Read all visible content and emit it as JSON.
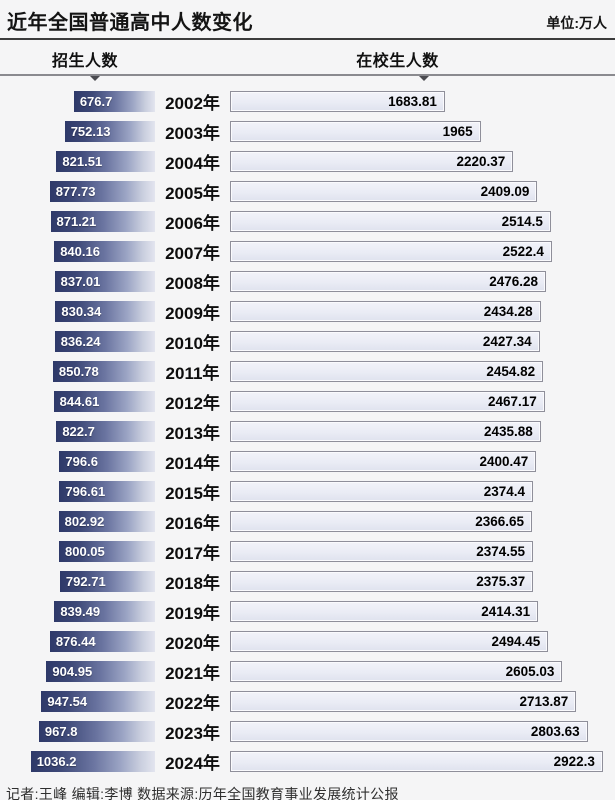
{
  "title": "近年全国普通高中人数变化",
  "unit_label": "单位:万人",
  "column_headers": {
    "enrollment": "招生人数",
    "students": "在校生人数"
  },
  "footer_credit": "记者:王峰  编辑:李博  数据来源:历年全国教育事业发展统计公报",
  "colors": {
    "enrollment_bar_dark": "#2e3969",
    "enrollment_bar_light": "#e3e5ef",
    "students_bar_fill": "#eaecf5",
    "students_bar_border": "#8f8f9a",
    "background": "#f5f5f6",
    "rule_dark": "#3c3c3c"
  },
  "chart_data": {
    "type": "bar",
    "orientation": "horizontal-bidirectional",
    "title": "近年全国普通高中人数变化",
    "unit": "万人",
    "legend_position": "top",
    "categories": [
      "2002年",
      "2003年",
      "2004年",
      "2005年",
      "2006年",
      "2007年",
      "2008年",
      "2009年",
      "2010年",
      "2011年",
      "2012年",
      "2013年",
      "2014年",
      "2015年",
      "2016年",
      "2017年",
      "2018年",
      "2019年",
      "2020年",
      "2021年",
      "2022年",
      "2023年",
      "2024年"
    ],
    "series": [
      {
        "name": "招生人数",
        "values": [
          676.7,
          752.13,
          821.51,
          877.73,
          871.21,
          840.16,
          837.01,
          830.34,
          836.24,
          850.78,
          844.61,
          822.7,
          796.6,
          796.61,
          802.92,
          800.05,
          792.71,
          839.49,
          876.44,
          904.95,
          947.54,
          967.8,
          1036.2
        ]
      },
      {
        "name": "在校生人数",
        "values": [
          1683.81,
          1965,
          2220.37,
          2409.09,
          2514.5,
          2522.4,
          2476.28,
          2434.28,
          2427.34,
          2454.82,
          2467.17,
          2435.88,
          2400.47,
          2374.4,
          2366.65,
          2374.55,
          2375.37,
          2414.31,
          2494.45,
          2605.03,
          2713.87,
          2803.63,
          2922.3
        ]
      }
    ]
  }
}
